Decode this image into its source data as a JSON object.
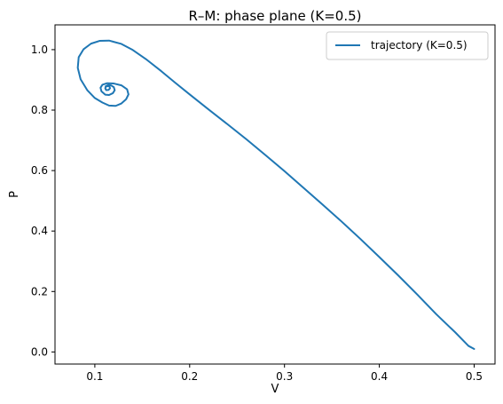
{
  "chart_data": {
    "type": "line",
    "title": "R–M: phase plane (K=0.5)",
    "xlabel": "V",
    "ylabel": "P",
    "xlim": [
      0.058,
      0.522
    ],
    "ylim": [
      -0.04,
      1.082
    ],
    "xticks": [
      0.1,
      0.2,
      0.3,
      0.4,
      0.5
    ],
    "xtick_labels": [
      "0.1",
      "0.2",
      "0.3",
      "0.4",
      "0.5"
    ],
    "yticks": [
      0.0,
      0.2,
      0.4,
      0.6,
      0.8,
      1.0
    ],
    "ytick_labels": [
      "0.0",
      "0.2",
      "0.4",
      "0.6",
      "0.8",
      "1.0"
    ],
    "grid": false,
    "legend": {
      "placement": "upper right"
    },
    "colors": {
      "series": "#1f77b4",
      "axes": "#000000",
      "legend_border": "#cccccc"
    },
    "series": [
      {
        "name": "trajectory (K=0.5)",
        "x": [
          0.5,
          0.494,
          0.48,
          0.46,
          0.44,
          0.42,
          0.4,
          0.38,
          0.36,
          0.34,
          0.32,
          0.3,
          0.28,
          0.26,
          0.24,
          0.22,
          0.2,
          0.185,
          0.17,
          0.155,
          0.14,
          0.128,
          0.115,
          0.105,
          0.096,
          0.088,
          0.083,
          0.082,
          0.085,
          0.092,
          0.1,
          0.108,
          0.115,
          0.122,
          0.128,
          0.133,
          0.1355,
          0.134,
          0.128,
          0.12,
          0.113,
          0.108,
          0.106,
          0.107,
          0.111,
          0.115,
          0.119,
          0.121,
          0.12,
          0.117,
          0.114,
          0.1115,
          0.111,
          0.112,
          0.1145,
          0.116,
          0.1155,
          0.114,
          0.1128
        ],
        "y": [
          0.01,
          0.02,
          0.065,
          0.125,
          0.19,
          0.253,
          0.314,
          0.374,
          0.432,
          0.488,
          0.543,
          0.598,
          0.651,
          0.703,
          0.753,
          0.802,
          0.852,
          0.89,
          0.929,
          0.966,
          0.999,
          1.019,
          1.03,
          1.029,
          1.02,
          1.001,
          0.975,
          0.94,
          0.902,
          0.866,
          0.84,
          0.825,
          0.815,
          0.814,
          0.822,
          0.836,
          0.852,
          0.869,
          0.882,
          0.888,
          0.889,
          0.884,
          0.874,
          0.862,
          0.851,
          0.85,
          0.856,
          0.866,
          0.876,
          0.882,
          0.883,
          0.879,
          0.872,
          0.866,
          0.867,
          0.872,
          0.878,
          0.88,
          0.8785
        ]
      }
    ]
  }
}
